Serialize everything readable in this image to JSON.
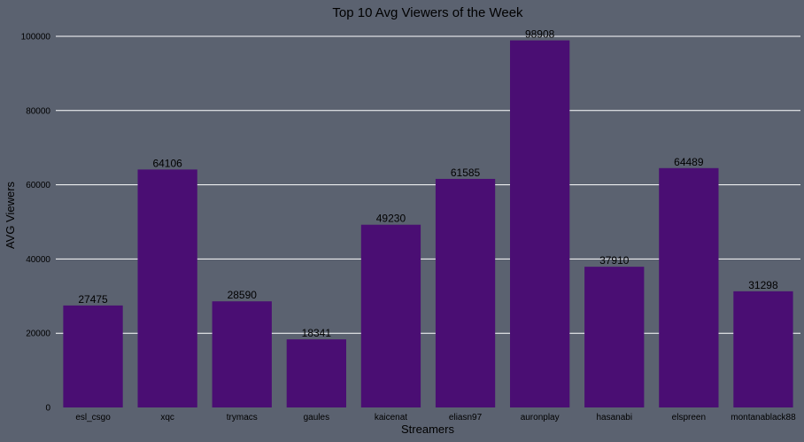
{
  "chart_data": {
    "type": "bar",
    "title": "Top 10 Avg Viewers of the Week",
    "xlabel": "Streamers",
    "ylabel": "AVG Viewers",
    "categories": [
      "esl_csgo",
      "xqc",
      "trymacs",
      "gaules",
      "kaicenat",
      "eliasn97",
      "auronplay",
      "hasanabi",
      "elspreen",
      "montanablack88"
    ],
    "values": [
      27475,
      64106,
      28590,
      18341,
      49230,
      61585,
      98908,
      37910,
      64489,
      31298
    ],
    "ylim": [
      0,
      100000
    ],
    "yticks": [
      0,
      20000,
      40000,
      60000,
      80000,
      100000
    ],
    "grid": "y",
    "legend": "none",
    "colors": {
      "background": "#5b6270",
      "bar": "#4a0e73",
      "grid": "#ffffff",
      "text": "#000000"
    }
  }
}
